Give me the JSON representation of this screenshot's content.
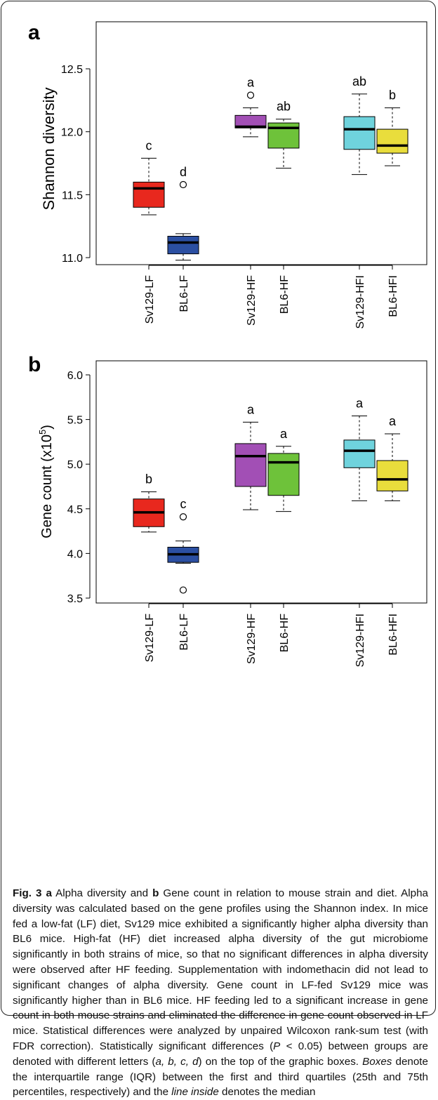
{
  "chart_data": [
    {
      "type": "box",
      "panel_label": "a",
      "ylabel": "Shannon diversity",
      "ylim": [
        10.95,
        12.8
      ],
      "yticks": [
        "11.0",
        "11.5",
        "12.0",
        "12.5"
      ],
      "yticks_values": [
        11.0,
        11.5,
        12.0,
        12.5
      ],
      "categories": [
        "Sv129-LF",
        "BL6-LF",
        "Sv129-HF",
        "BL6-HF",
        "Sv129-HFI",
        "BL6-HFI"
      ],
      "colors": [
        "#e8281e",
        "#2b4fa2",
        "#a24fb5",
        "#6ec23a",
        "#6fd3dd",
        "#e9dd3c"
      ],
      "boxes": [
        {
          "min": 11.34,
          "q1": 11.4,
          "median": 11.55,
          "q3": 11.6,
          "max": 11.79,
          "outliers": [],
          "letter": "c"
        },
        {
          "min": 10.98,
          "q1": 11.03,
          "median": 11.12,
          "q3": 11.17,
          "max": 11.19,
          "outliers": [
            11.58
          ],
          "letter": "d"
        },
        {
          "min": 11.96,
          "q1": 12.03,
          "median": 12.04,
          "q3": 12.13,
          "max": 12.19,
          "outliers": [
            12.29
          ],
          "letter": "a"
        },
        {
          "min": 11.71,
          "q1": 11.87,
          "median": 12.03,
          "q3": 12.07,
          "max": 12.1,
          "outliers": [],
          "letter": "ab"
        },
        {
          "min": 11.66,
          "q1": 11.86,
          "median": 12.02,
          "q3": 12.12,
          "max": 12.3,
          "outliers": [],
          "letter": "ab"
        },
        {
          "min": 11.73,
          "q1": 11.83,
          "median": 11.89,
          "q3": 12.02,
          "max": 12.19,
          "outliers": [],
          "letter": "b"
        }
      ]
    },
    {
      "type": "box",
      "panel_label": "b",
      "ylabel": "Gene count (x10",
      "ylabel_sup": "5",
      "ylabel_close": ")",
      "ylim": [
        3.5,
        6.0
      ],
      "yticks": [
        "3.5",
        "4.0",
        "4.5",
        "5.0",
        "5.5",
        "6.0"
      ],
      "yticks_values": [
        3.5,
        4.0,
        4.5,
        5.0,
        5.5,
        6.0
      ],
      "categories": [
        "Sv129-LF",
        "BL6-LF",
        "Sv129-HF",
        "BL6-HF",
        "Sv129-HFI",
        "BL6-HFI"
      ],
      "colors": [
        "#e8281e",
        "#2b4fa2",
        "#a24fb5",
        "#6ec23a",
        "#6fd3dd",
        "#e9dd3c"
      ],
      "boxes": [
        {
          "min": 4.24,
          "q1": 4.3,
          "median": 4.46,
          "q3": 4.61,
          "max": 4.69,
          "outliers": [],
          "letter": "b"
        },
        {
          "min": 3.89,
          "q1": 3.9,
          "median": 3.99,
          "q3": 4.07,
          "max": 4.14,
          "outliers": [
            4.41,
            3.59
          ],
          "letter": "c"
        },
        {
          "min": 4.49,
          "q1": 4.75,
          "median": 5.09,
          "q3": 5.23,
          "max": 5.47,
          "outliers": [],
          "letter": "a"
        },
        {
          "min": 4.47,
          "q1": 4.65,
          "median": 5.02,
          "q3": 5.12,
          "max": 5.2,
          "outliers": [],
          "letter": "a"
        },
        {
          "min": 4.59,
          "q1": 4.96,
          "median": 5.15,
          "q3": 5.27,
          "max": 5.54,
          "outliers": [],
          "letter": "a"
        },
        {
          "min": 4.59,
          "q1": 4.7,
          "median": 4.83,
          "q3": 5.04,
          "max": 5.34,
          "outliers": [],
          "letter": "a"
        }
      ]
    }
  ],
  "caption": {
    "fig": "Fig. 3",
    "a": "a",
    "t1": " Alpha diversity and ",
    "b": "b",
    "t2": " Gene count in relation to mouse strain and diet. Alpha diversity was calculated based on the gene profiles using the Shannon index. In mice fed a low-fat (LF) diet, Sv129 mice exhibited a significantly higher alpha diversity than BL6 mice. High-fat (HF) diet increased alpha diversity of the gut microbiome significantly in both strains of mice, so that no significant differences in alpha diversity were observed after HF feeding. Supplementation with indomethacin did not lead to significant changes of alpha diversity. Gene count in LF-fed Sv129 mice was significantly higher than in BL6 mice. HF feeding led to a significant increase in gene count in both mouse strains and eliminated the difference in gene count observed in LF mice. Statistical differences were analyzed by unpaired Wilcoxon rank-sum test (with FDR correction). Statistically significant differences (",
    "p": "P",
    "t3": " < 0.05) between groups are denoted with different letters (",
    "letters": "a, b, c, d",
    "t4": ") on the top of the graphic boxes. ",
    "boxes": "Boxes",
    "t5": " denote the interquartile range (IQR) between the first and third quartiles (25th and 75th percentiles, respectively) and the ",
    "line_inside": "line inside",
    "t6": " denotes the median"
  }
}
